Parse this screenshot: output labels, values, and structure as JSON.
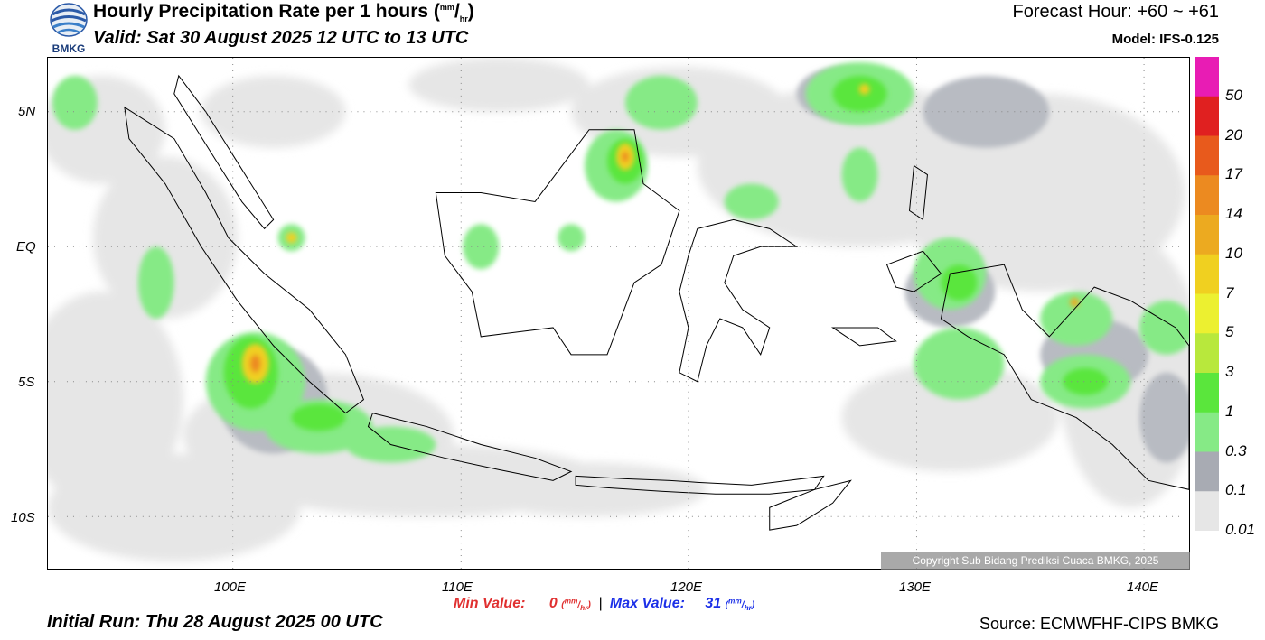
{
  "header": {
    "title": "Hourly Precipitation Rate per 1 hours",
    "title_unit_mm": "mm",
    "title_unit_hr": "hr",
    "valid": "Valid: Sat 30 August 2025 12 UTC to 13 UTC",
    "forecast_hour": "Forecast Hour: +60 ~ +61",
    "model": "Model: IFS-0.125",
    "logo_text": "BMKG"
  },
  "axes": {
    "lat_labels": [
      "5N",
      "EQ",
      "5S",
      "10S"
    ],
    "lon_labels": [
      "100E",
      "110E",
      "120E",
      "130E",
      "140E"
    ]
  },
  "legend": {
    "labels": [
      "50",
      "20",
      "17",
      "14",
      "10",
      "7",
      "5",
      "3",
      "1",
      "0.3",
      "0.1",
      "0.01"
    ],
    "colors": [
      "#e81cb4",
      "#e02020",
      "#e85a1c",
      "#ec8a20",
      "#ecaa20",
      "#f0d020",
      "#ecf030",
      "#b8e83c",
      "#5ae63c",
      "#86ea86",
      "#a8abb3",
      "#e6e6e6"
    ]
  },
  "footer": {
    "copyright": "Copyright Sub Bidang Prediksi Cuaca BMKG, 2025",
    "min_label": "Min Value:",
    "min_value": "0",
    "max_label": "Max Value:",
    "max_value": "31",
    "initial_run": "Initial Run: Thu 28 August 2025 00 UTC",
    "source": "Source: ECMWFHF-CIPS BMKG"
  }
}
